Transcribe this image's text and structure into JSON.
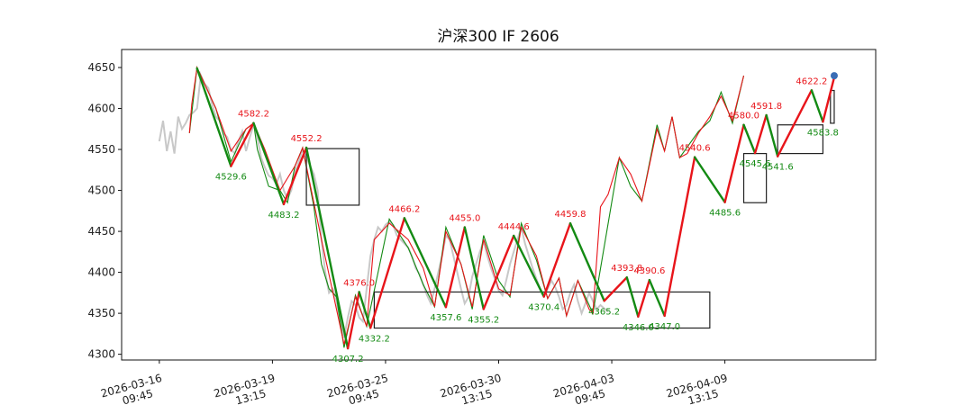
{
  "chart_data": {
    "type": "line",
    "title": "沪深300 IF 2606",
    "xlabel": "",
    "ylabel": "",
    "ylim": [
      4293,
      4672
    ],
    "xlim": [
      -5,
      95
    ],
    "yticks": [
      4300,
      4350,
      4400,
      4450,
      4500,
      4550,
      4600,
      4650
    ],
    "xticks": [
      {
        "x": 0,
        "l1": "2026-03-16",
        "l2": "09:45"
      },
      {
        "x": 15,
        "l1": "2026-03-19",
        "l2": "13:15"
      },
      {
        "x": 30,
        "l1": "2026-03-25",
        "l2": "09:45"
      },
      {
        "x": 45,
        "l1": "2026-03-30",
        "l2": "13:15"
      },
      {
        "x": 60,
        "l1": "2026-04-03",
        "l2": "09:45"
      },
      {
        "x": 75,
        "l1": "2026-04-09",
        "l2": "13:15"
      }
    ],
    "grid": false,
    "colors": {
      "up": "#e8141a",
      "down": "#138a13",
      "price": "#c8c8c8",
      "box": "#222222",
      "marker": "#3a6db5"
    },
    "price": [
      [
        0,
        4560
      ],
      [
        0.5,
        4585
      ],
      [
        1,
        4548
      ],
      [
        1.5,
        4572
      ],
      [
        2,
        4545
      ],
      [
        2.5,
        4590
      ],
      [
        3,
        4575
      ],
      [
        3.5,
        4582
      ],
      [
        4,
        4592
      ],
      [
        4.5,
        4595
      ],
      [
        5,
        4600
      ],
      [
        5.5,
        4640
      ],
      [
        5.3,
        4645
      ],
      [
        6,
        4630
      ],
      [
        6.5,
        4625
      ],
      [
        7,
        4605
      ],
      [
        7.5,
        4590
      ],
      [
        8,
        4585
      ],
      [
        8.5,
        4570
      ],
      [
        9,
        4565
      ],
      [
        9.5,
        4550
      ],
      [
        10,
        4545
      ],
      [
        10.5,
        4560
      ],
      [
        11,
        4572
      ],
      [
        11.5,
        4548
      ],
      [
        12,
        4565
      ],
      [
        12.5,
        4580
      ],
      [
        13,
        4565
      ],
      [
        13.5,
        4540
      ],
      [
        14,
        4528
      ],
      [
        14.5,
        4518
      ],
      [
        15,
        4515
      ],
      [
        15.5,
        4508
      ],
      [
        16,
        4520
      ],
      [
        16.5,
        4500
      ],
      [
        17,
        4490
      ],
      [
        17.5,
        4500
      ],
      [
        18,
        4522
      ],
      [
        18.5,
        4535
      ],
      [
        19,
        4550
      ],
      [
        19.5,
        4540
      ],
      [
        20,
        4530
      ],
      [
        20.5,
        4520
      ],
      [
        21,
        4500
      ],
      [
        21.5,
        4440
      ],
      [
        22,
        4400
      ],
      [
        22.5,
        4375
      ],
      [
        23,
        4380
      ],
      [
        23.5,
        4365
      ],
      [
        24,
        4340
      ],
      [
        24.5,
        4320
      ],
      [
        25,
        4345
      ],
      [
        25.5,
        4365
      ],
      [
        26,
        4360
      ],
      [
        26.5,
        4345
      ],
      [
        27,
        4340
      ],
      [
        27.5,
        4380
      ],
      [
        28,
        4420
      ],
      [
        28.5,
        4440
      ],
      [
        29,
        4455
      ],
      [
        29.5,
        4450
      ],
      [
        30,
        4458
      ],
      [
        30.5,
        4462
      ],
      [
        31,
        4458
      ],
      [
        31.5,
        4445
      ],
      [
        32,
        4440
      ],
      [
        32.5,
        4435
      ],
      [
        33,
        4430
      ],
      [
        33.5,
        4420
      ],
      [
        34,
        4405
      ],
      [
        34.5,
        4398
      ],
      [
        35,
        4385
      ],
      [
        35.5,
        4372
      ],
      [
        36,
        4362
      ],
      [
        36.5,
        4380
      ],
      [
        37,
        4400
      ],
      [
        37.5,
        4420
      ],
      [
        38,
        4445
      ],
      [
        38.5,
        4440
      ],
      [
        39,
        4420
      ],
      [
        39.5,
        4400
      ],
      [
        40,
        4380
      ],
      [
        40.5,
        4362
      ],
      [
        41,
        4370
      ],
      [
        41.5,
        4395
      ],
      [
        42,
        4410
      ],
      [
        42.5,
        4425
      ],
      [
        43,
        4438
      ],
      [
        43.5,
        4420
      ],
      [
        44,
        4405
      ],
      [
        44.5,
        4392
      ],
      [
        45,
        4378
      ],
      [
        45.5,
        4372
      ],
      [
        46,
        4390
      ],
      [
        46.5,
        4410
      ],
      [
        47,
        4425
      ],
      [
        47.5,
        4440
      ],
      [
        48,
        4455
      ],
      [
        48.5,
        4435
      ],
      [
        49,
        4420
      ],
      [
        49.5,
        4405
      ],
      [
        50,
        4392
      ],
      [
        50.5,
        4380
      ],
      [
        51,
        4372
      ],
      [
        51.5,
        4380
      ],
      [
        52,
        4390
      ],
      [
        52.5,
        4382
      ],
      [
        53,
        4370
      ],
      [
        53.5,
        4355
      ],
      [
        54,
        4360
      ],
      [
        54.5,
        4375
      ],
      [
        55,
        4385
      ],
      [
        55.5,
        4365
      ],
      [
        56,
        4350
      ],
      [
        56.5,
        4362
      ],
      [
        57,
        4375
      ],
      [
        57.5,
        4365
      ],
      [
        58,
        4355
      ],
      [
        58.5,
        4360
      ],
      [
        59,
        4356
      ],
      [
        59.5,
        4352
      ]
    ],
    "thin_red": [
      [
        4,
        4570
      ],
      [
        4.3,
        4605
      ],
      [
        5,
        4650
      ],
      [
        7.5,
        4600
      ],
      [
        9.5,
        4548
      ],
      [
        11.5,
        4575
      ],
      [
        12.5,
        4582
      ],
      [
        14,
        4550
      ],
      [
        16,
        4500
      ],
      [
        18,
        4530
      ],
      [
        19,
        4552
      ],
      [
        21.5,
        4440
      ],
      [
        23.5,
        4355
      ],
      [
        24.5,
        4312
      ],
      [
        26,
        4370
      ],
      [
        27.5,
        4334
      ],
      [
        28.5,
        4440
      ],
      [
        30.5,
        4460
      ],
      [
        33,
        4440
      ],
      [
        35,
        4405
      ],
      [
        36.5,
        4358
      ],
      [
        38,
        4450
      ],
      [
        40,
        4410
      ],
      [
        41.5,
        4358
      ],
      [
        43,
        4440
      ],
      [
        45,
        4380
      ],
      [
        46.5,
        4372
      ],
      [
        48,
        4455
      ],
      [
        50,
        4420
      ],
      [
        51.5,
        4368
      ],
      [
        53,
        4393
      ],
      [
        54,
        4347
      ],
      [
        55.5,
        4390
      ],
      [
        57,
        4355
      ],
      [
        57.5,
        4350
      ],
      [
        58.5,
        4480
      ],
      [
        59.5,
        4495
      ],
      [
        61,
        4540
      ],
      [
        62.5,
        4520
      ],
      [
        64,
        4487
      ],
      [
        66,
        4575
      ],
      [
        67,
        4548
      ],
      [
        68,
        4590
      ],
      [
        69,
        4540
      ],
      [
        70,
        4545
      ],
      [
        71.5,
        4570
      ],
      [
        73,
        4590
      ],
      [
        74.5,
        4615
      ],
      [
        76,
        4585
      ],
      [
        77.5,
        4640
      ]
    ],
    "thin_green": [
      [
        4,
        4570
      ],
      [
        5,
        4650
      ],
      [
        7.5,
        4600
      ],
      [
        9.5,
        4535
      ],
      [
        11.5,
        4575
      ],
      [
        12.5,
        4582
      ],
      [
        13,
        4550
      ],
      [
        14.5,
        4505
      ],
      [
        16,
        4500
      ],
      [
        17,
        4485
      ],
      [
        18,
        4530
      ],
      [
        19,
        4552
      ],
      [
        20.5,
        4480
      ],
      [
        21.5,
        4410
      ],
      [
        22.5,
        4380
      ],
      [
        23.5,
        4370
      ],
      [
        24.5,
        4308
      ],
      [
        26,
        4372
      ],
      [
        27.5,
        4334
      ],
      [
        30.5,
        4465
      ],
      [
        33,
        4430
      ],
      [
        35,
        4385
      ],
      [
        36.5,
        4358
      ],
      [
        38,
        4455
      ],
      [
        40,
        4410
      ],
      [
        41.5,
        4355
      ],
      [
        43,
        4445
      ],
      [
        45,
        4390
      ],
      [
        46.5,
        4370
      ],
      [
        48,
        4460
      ],
      [
        50,
        4415
      ],
      [
        51.5,
        4368
      ],
      [
        53,
        4393
      ],
      [
        54,
        4347
      ],
      [
        55.5,
        4390
      ],
      [
        57.5,
        4350
      ],
      [
        61,
        4540
      ],
      [
        62.5,
        4505
      ],
      [
        64,
        4487
      ],
      [
        66,
        4580
      ],
      [
        67,
        4548
      ],
      [
        68,
        4590
      ],
      [
        69,
        4540
      ],
      [
        71.5,
        4572
      ],
      [
        73,
        4585
      ],
      [
        74.5,
        4620
      ],
      [
        76,
        4582
      ],
      [
        77.5,
        4640
      ]
    ],
    "zigzag": [
      [
        5,
        4649
      ],
      [
        9.5,
        4529.6
      ],
      [
        12.5,
        4582.2
      ],
      [
        16.5,
        4483.2
      ],
      [
        19.5,
        4552.2
      ],
      [
        25,
        4307.2
      ],
      [
        26.5,
        4376.0
      ],
      [
        28,
        4332.2
      ],
      [
        32.5,
        4466.2
      ],
      [
        38,
        4357.6
      ],
      [
        40.5,
        4455.0
      ],
      [
        43,
        4355.2
      ],
      [
        47,
        4444.6
      ],
      [
        51,
        4370.4
      ],
      [
        54.5,
        4459.8
      ],
      [
        59,
        4365.2
      ],
      [
        62,
        4393.8
      ],
      [
        63.5,
        4346.0
      ],
      [
        65,
        4390.6
      ],
      [
        67,
        4347.0
      ],
      [
        71,
        4540.6
      ],
      [
        75,
        4485.6
      ],
      [
        77.5,
        4580.0
      ],
      [
        79,
        4545.6
      ],
      [
        80.5,
        4591.8
      ],
      [
        82,
        4541.6
      ],
      [
        86.5,
        4622.2
      ],
      [
        88,
        4583.8
      ],
      [
        89.5,
        4638
      ]
    ],
    "end_point": [
      89.5,
      4640
    ],
    "annotations": [
      {
        "x": 12.5,
        "y": 4582.2,
        "text": "4582.2",
        "pos": "top"
      },
      {
        "x": 9.5,
        "y": 4529.6,
        "text": "4529.6",
        "pos": "bottom"
      },
      {
        "x": 19.5,
        "y": 4552.2,
        "text": "4552.2",
        "pos": "top"
      },
      {
        "x": 16.5,
        "y": 4483.2,
        "text": "4483.2",
        "pos": "bottom"
      },
      {
        "x": 26.5,
        "y": 4376.0,
        "text": "4376.0",
        "pos": "top"
      },
      {
        "x": 25,
        "y": 4307.2,
        "text": "4307.2",
        "pos": "bottom"
      },
      {
        "x": 28.5,
        "y": 4332.2,
        "text": "4332.2",
        "pos": "bottom"
      },
      {
        "x": 32.5,
        "y": 4466.2,
        "text": "4466.2",
        "pos": "top"
      },
      {
        "x": 38,
        "y": 4357.6,
        "text": "4357.6",
        "pos": "bottom"
      },
      {
        "x": 40.5,
        "y": 4455.0,
        "text": "4455.0",
        "pos": "top"
      },
      {
        "x": 43,
        "y": 4355.2,
        "text": "4355.2",
        "pos": "bottom"
      },
      {
        "x": 47,
        "y": 4444.6,
        "text": "4444.6",
        "pos": "top"
      },
      {
        "x": 51,
        "y": 4370.4,
        "text": "4370.4",
        "pos": "bottom"
      },
      {
        "x": 54.5,
        "y": 4459.8,
        "text": "4459.8",
        "pos": "top"
      },
      {
        "x": 59,
        "y": 4365.2,
        "text": "4365.2",
        "pos": "bottom"
      },
      {
        "x": 62,
        "y": 4393.8,
        "text": "4393.8",
        "pos": "top"
      },
      {
        "x": 63.5,
        "y": 4346.0,
        "text": "4346.0",
        "pos": "bottom"
      },
      {
        "x": 65,
        "y": 4390.6,
        "text": "4390.6",
        "pos": "top"
      },
      {
        "x": 67,
        "y": 4347.0,
        "text": "4347.0",
        "pos": "bottom"
      },
      {
        "x": 71,
        "y": 4540.6,
        "text": "4540.6",
        "pos": "top"
      },
      {
        "x": 75,
        "y": 4485.6,
        "text": "4485.6",
        "pos": "bottom"
      },
      {
        "x": 77.5,
        "y": 4580.0,
        "text": "4580.0",
        "pos": "top"
      },
      {
        "x": 79,
        "y": 4545.6,
        "text": "4545.6",
        "pos": "bottom"
      },
      {
        "x": 80.5,
        "y": 4591.8,
        "text": "4591.8",
        "pos": "top"
      },
      {
        "x": 82,
        "y": 4541.6,
        "text": "4541.6",
        "pos": "bottom"
      },
      {
        "x": 86.5,
        "y": 4622.2,
        "text": "4622.2",
        "pos": "top"
      },
      {
        "x": 88,
        "y": 4583.8,
        "text": "4583.8",
        "pos": "bottom"
      }
    ],
    "boxes": [
      {
        "x0": 19.5,
        "x1": 26.5,
        "y0": 4482,
        "y1": 4551
      },
      {
        "x0": 28.5,
        "x1": 73,
        "y0": 4332,
        "y1": 4376
      },
      {
        "x0": 77.5,
        "x1": 80.5,
        "y0": 4485,
        "y1": 4545
      },
      {
        "x0": 82,
        "x1": 88,
        "y0": 4545,
        "y1": 4580
      },
      {
        "x0": 89,
        "x1": 89.5,
        "y0": 4582,
        "y1": 4622
      }
    ]
  }
}
